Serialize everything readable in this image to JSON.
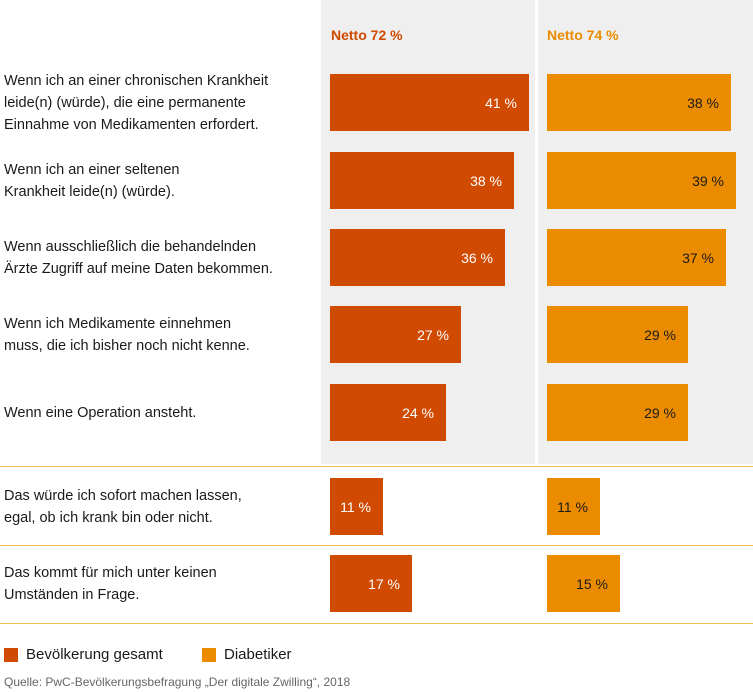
{
  "chart_data": {
    "type": "bar",
    "orientation": "horizontal",
    "series": [
      {
        "name": "Bevölkerung gesamt",
        "header": "Netto 72 %",
        "color": "#d04a02",
        "values": [
          41,
          38,
          36,
          27,
          24,
          11,
          17
        ],
        "value_labels": [
          "41 %",
          "38 %",
          "36 %",
          "27 %",
          "24 %",
          "11 %",
          "17 %"
        ]
      },
      {
        "name": "Diabetiker",
        "header": "Netto 74 %",
        "color": "#eb8c00",
        "values": [
          38,
          39,
          37,
          29,
          29,
          11,
          15
        ],
        "value_labels": [
          "38 %",
          "39 %",
          "37 %",
          "29 %",
          "29 %",
          "11 %",
          "15 %"
        ]
      }
    ],
    "categories": [
      "Wenn ich an einer chronischen Krankheit\nleide(n) (würde), die eine permanente\nEinnahme von Medikamenten erfordert.",
      "Wenn ich an einer seltenen\nKrankheit leide(n) (würde).",
      "Wenn ausschließlich die behandelnden\nÄrzte Zugriff auf meine Daten bekommen.",
      "Wenn ich Medikamente einnehmen\nmuss, die ich bisher noch nicht kenne.",
      "Wenn eine Operation ansteht.",
      "Das würde ich sofort machen lassen,\negal, ob ich krank bin oder nicht.",
      "Das kommt für mich unter keinen\nUmständen in Frage."
    ],
    "legend": "bottom-left",
    "source": "Quelle: PwC-Bevölkerungsbefragung „Der digitale Zwilling“, 2018"
  }
}
